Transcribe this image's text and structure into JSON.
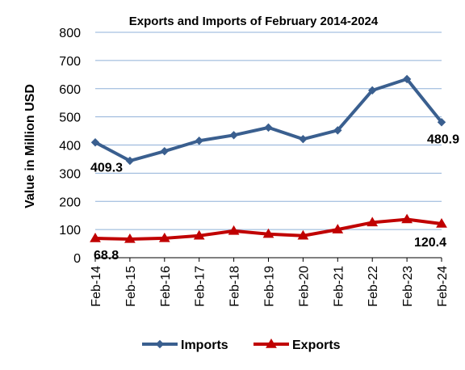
{
  "chart_data": {
    "type": "line",
    "title": "Exports and Imports of February 2014-2024",
    "ylabel": "Value in  Million  USD",
    "xlabel": "",
    "categories": [
      "Feb-14",
      "Feb-15",
      "Feb-16",
      "Feb-17",
      "Feb-18",
      "Feb-19",
      "Feb-20",
      "Feb-21",
      "Feb-22",
      "Feb-23",
      "Feb-24"
    ],
    "ylim": [
      0,
      800
    ],
    "yticks": [
      "0",
      "100",
      "200",
      "300",
      "400",
      "500",
      "600",
      "700",
      "800"
    ],
    "grid": true,
    "legend_position": "bottom",
    "series": [
      {
        "name": "Imports",
        "color": "#3a5f8f",
        "marker": "diamond",
        "values": [
          409.3,
          344,
          378,
          415,
          435,
          462,
          421,
          452,
          594,
          634,
          480.9
        ]
      },
      {
        "name": "Exports",
        "color": "#c00000",
        "marker": "triangle",
        "values": [
          68.8,
          66,
          69,
          78,
          95,
          84,
          78,
          100,
          125,
          136,
          120.4
        ]
      }
    ],
    "annotations": [
      {
        "series": 0,
        "index": 0,
        "text": "409.3"
      },
      {
        "series": 0,
        "index": 10,
        "text": "480.9"
      },
      {
        "series": 1,
        "index": 0,
        "text": "68.8"
      },
      {
        "series": 1,
        "index": 10,
        "text": "120.4"
      }
    ]
  }
}
